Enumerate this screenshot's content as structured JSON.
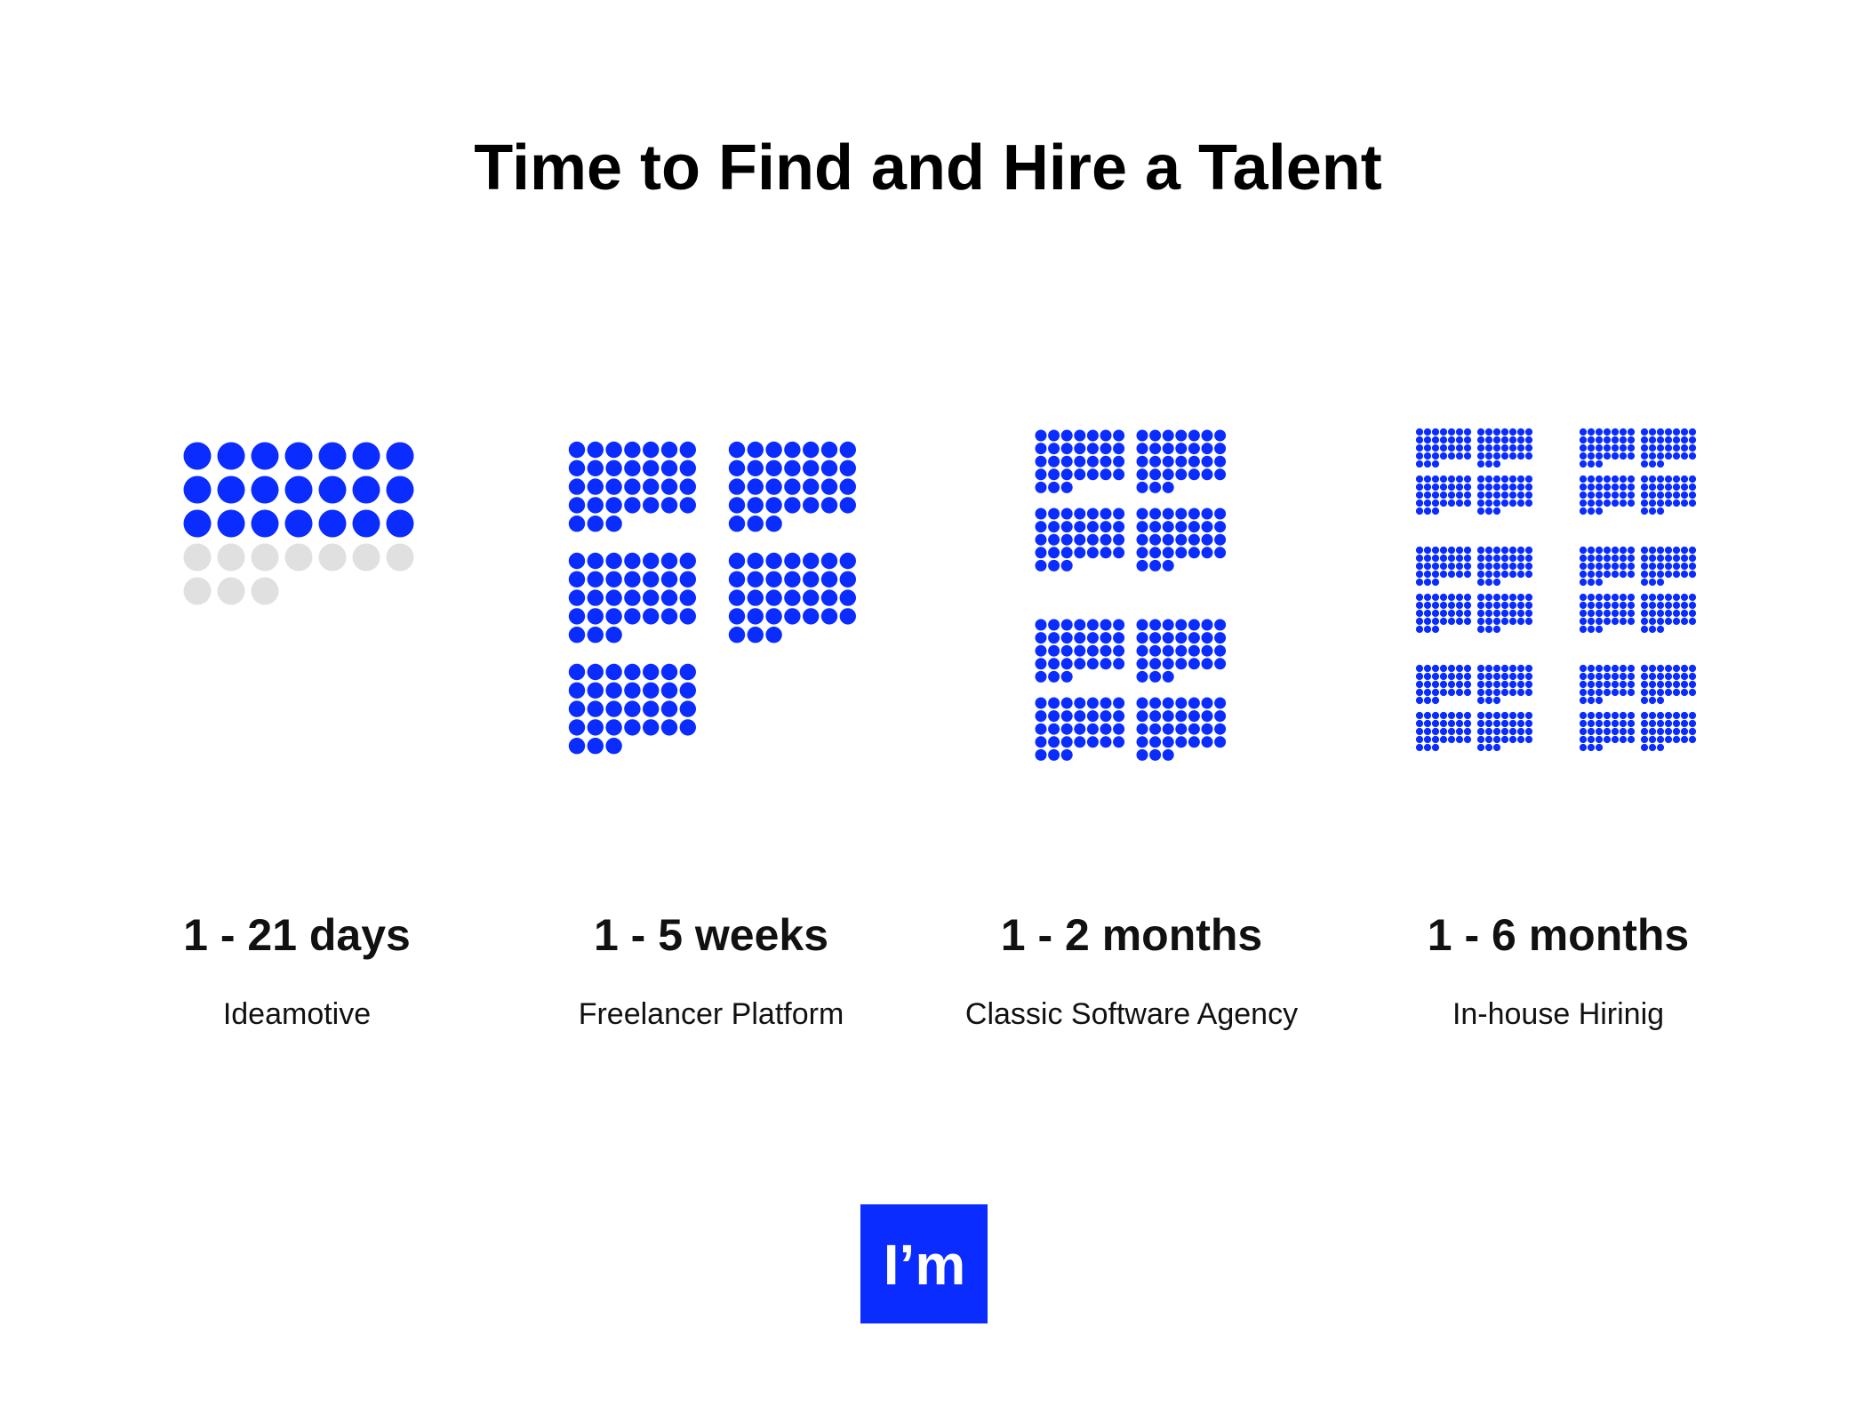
{
  "title": "Time to Find and Hire a Talent",
  "items": [
    {
      "range": "1 - 21 days",
      "name": "Ideamotive",
      "dots": {
        "blocks": 1,
        "per_block": 31,
        "filled": 21
      }
    },
    {
      "range": "1 - 5 weeks",
      "name": "Freelancer Platform",
      "dots": {
        "blocks": 5,
        "per_block": 31,
        "filled": 155
      }
    },
    {
      "range": "1 - 2 months",
      "name": "Classic Software Agency",
      "dots": {
        "blocks": 8,
        "per_block": 31,
        "filled": 248
      }
    },
    {
      "range": "1 - 6 months",
      "name": "In-house Hirinig",
      "dots": {
        "blocks": 24,
        "per_block": 31,
        "filled": 744
      }
    }
  ],
  "logo": "I’m",
  "colors": {
    "filled": "#0a2cff",
    "empty": "#e0e0e0"
  }
}
